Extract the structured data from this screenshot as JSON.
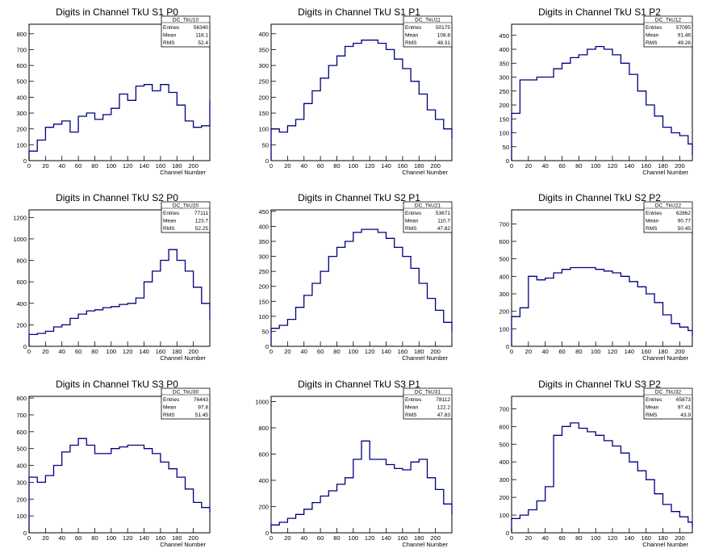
{
  "chart_data": [
    {
      "type": "histogram",
      "title": "Digits in Channel TkU S1 P0",
      "xlabel": "Channel Number",
      "stats": {
        "name": "DC_TkU10",
        "Entries": "56340",
        "Mean": "118.1",
        "RMS": "52.4"
      },
      "xlim": [
        0,
        220
      ],
      "ylim": [
        0,
        860
      ],
      "xticks": [
        0,
        20,
        40,
        60,
        80,
        100,
        120,
        140,
        160,
        180,
        200
      ],
      "yticks": [
        0,
        100,
        200,
        300,
        400,
        500,
        600,
        700,
        800
      ],
      "line_color": "#000080",
      "x_bins": [
        0,
        10,
        20,
        30,
        40,
        50,
        60,
        70,
        80,
        90,
        100,
        110,
        120,
        130,
        140,
        150,
        160,
        170,
        180,
        190,
        200,
        210,
        220
      ],
      "values": [
        60,
        130,
        210,
        230,
        250,
        180,
        280,
        300,
        260,
        290,
        330,
        420,
        380,
        470,
        480,
        440,
        480,
        430,
        350,
        250,
        210,
        220,
        380
      ]
    },
    {
      "type": "histogram",
      "title": "Digits in Channel TkU S1 P1",
      "xlabel": "Channel Number",
      "stats": {
        "name": "DC_TkU11",
        "Entries": "50175",
        "Mean": "108.8",
        "RMS": "48.31"
      },
      "xlim": [
        0,
        220
      ],
      "ylim": [
        0,
        430
      ],
      "xticks": [
        0,
        20,
        40,
        60,
        80,
        100,
        120,
        140,
        160,
        180,
        200
      ],
      "yticks": [
        0,
        50,
        100,
        150,
        200,
        250,
        300,
        350,
        400
      ],
      "line_color": "#000080",
      "x_bins": [
        0,
        10,
        20,
        30,
        40,
        50,
        60,
        70,
        80,
        90,
        100,
        110,
        120,
        130,
        140,
        150,
        160,
        170,
        180,
        190,
        200,
        210,
        220
      ],
      "values": [
        100,
        90,
        110,
        130,
        180,
        220,
        260,
        300,
        330,
        360,
        370,
        380,
        380,
        370,
        350,
        320,
        290,
        250,
        210,
        160,
        130,
        100,
        70
      ]
    },
    {
      "type": "histogram",
      "title": "Digits in Channel TkU S1 P2",
      "xlabel": "Channel Number",
      "stats": {
        "name": "DC_TkU12",
        "Entries": "57095",
        "Mean": "91.46",
        "RMS": "49.26"
      },
      "xlim": [
        0,
        215
      ],
      "ylim": [
        0,
        490
      ],
      "xticks": [
        0,
        20,
        40,
        60,
        80,
        100,
        120,
        140,
        160,
        180,
        200
      ],
      "yticks": [
        0,
        50,
        100,
        150,
        200,
        250,
        300,
        350,
        400,
        450
      ],
      "line_color": "#000080",
      "x_bins": [
        0,
        10,
        20,
        30,
        40,
        50,
        60,
        70,
        80,
        90,
        100,
        110,
        120,
        130,
        140,
        150,
        160,
        170,
        180,
        190,
        200,
        210,
        215
      ],
      "values": [
        170,
        290,
        290,
        300,
        300,
        330,
        350,
        370,
        380,
        400,
        410,
        400,
        380,
        350,
        310,
        250,
        200,
        160,
        120,
        100,
        90,
        60,
        20
      ]
    },
    {
      "type": "histogram",
      "title": "Digits in Channel TkU S2 P0",
      "xlabel": "Channel Number",
      "stats": {
        "name": "DC_TkU20",
        "Entries": "77111",
        "Mean": "123.7",
        "RMS": "52.25"
      },
      "xlim": [
        0,
        220
      ],
      "ylim": [
        0,
        1270
      ],
      "xticks": [
        0,
        20,
        40,
        60,
        80,
        100,
        120,
        140,
        160,
        180,
        200
      ],
      "yticks": [
        0,
        200,
        400,
        600,
        800,
        1000,
        1200
      ],
      "line_color": "#000080",
      "x_bins": [
        0,
        10,
        20,
        30,
        40,
        50,
        60,
        70,
        80,
        90,
        100,
        110,
        120,
        130,
        140,
        150,
        160,
        170,
        180,
        190,
        200,
        210,
        220
      ],
      "values": [
        110,
        120,
        140,
        180,
        200,
        260,
        300,
        330,
        340,
        360,
        370,
        390,
        400,
        450,
        600,
        700,
        800,
        900,
        800,
        700,
        550,
        400,
        250
      ]
    },
    {
      "type": "histogram",
      "title": "Digits in Channel TkU S2 P1",
      "xlabel": "Channel Number",
      "stats": {
        "name": "DC_TkU21",
        "Entries": "53671",
        "Mean": "110.7",
        "RMS": "47.82"
      },
      "xlim": [
        0,
        220
      ],
      "ylim": [
        0,
        455
      ],
      "xticks": [
        0,
        20,
        40,
        60,
        80,
        100,
        120,
        140,
        160,
        180,
        200
      ],
      "yticks": [
        0,
        50,
        100,
        150,
        200,
        250,
        300,
        350,
        400,
        450
      ],
      "line_color": "#000080",
      "x_bins": [
        0,
        10,
        20,
        30,
        40,
        50,
        60,
        70,
        80,
        90,
        100,
        110,
        120,
        130,
        140,
        150,
        160,
        170,
        180,
        190,
        200,
        210,
        220
      ],
      "values": [
        60,
        70,
        90,
        130,
        170,
        210,
        250,
        300,
        330,
        350,
        380,
        390,
        390,
        380,
        360,
        330,
        300,
        260,
        210,
        160,
        120,
        80,
        50
      ]
    },
    {
      "type": "histogram",
      "title": "Digits in Channel TkU S2 P2",
      "xlabel": "Channel Number",
      "stats": {
        "name": "DC_TkU22",
        "Entries": "62862",
        "Mean": "90.77",
        "RMS": "50.45"
      },
      "xlim": [
        0,
        215
      ],
      "ylim": [
        0,
        780
      ],
      "xticks": [
        0,
        20,
        40,
        60,
        80,
        100,
        120,
        140,
        160,
        180,
        200
      ],
      "yticks": [
        0,
        100,
        200,
        300,
        400,
        500,
        600,
        700
      ],
      "line_color": "#000080",
      "x_bins": [
        0,
        10,
        20,
        30,
        40,
        50,
        60,
        70,
        80,
        90,
        100,
        110,
        120,
        130,
        140,
        150,
        160,
        170,
        180,
        190,
        200,
        210,
        215
      ],
      "values": [
        170,
        220,
        400,
        380,
        390,
        420,
        440,
        450,
        450,
        450,
        440,
        430,
        420,
        400,
        370,
        340,
        300,
        250,
        180,
        130,
        110,
        90,
        60
      ]
    },
    {
      "type": "histogram",
      "title": "Digits in Channel TkU S3 P0",
      "xlabel": "Channel Number",
      "stats": {
        "name": "DC_TkU30",
        "Entries": "76443",
        "Mean": "97.8",
        "RMS": "51.45"
      },
      "xlim": [
        0,
        220
      ],
      "ylim": [
        0,
        810
      ],
      "xticks": [
        0,
        20,
        40,
        60,
        80,
        100,
        120,
        140,
        160,
        180,
        200
      ],
      "yticks": [
        0,
        100,
        200,
        300,
        400,
        500,
        600,
        700,
        800
      ],
      "line_color": "#000080",
      "x_bins": [
        0,
        10,
        20,
        30,
        40,
        50,
        60,
        70,
        80,
        90,
        100,
        110,
        120,
        130,
        140,
        150,
        160,
        170,
        180,
        190,
        200,
        210,
        220
      ],
      "values": [
        330,
        300,
        340,
        400,
        480,
        520,
        560,
        520,
        470,
        470,
        500,
        510,
        520,
        520,
        500,
        470,
        420,
        380,
        330,
        260,
        180,
        150,
        120
      ]
    },
    {
      "type": "histogram",
      "title": "Digits in Channel TkU S3 P1",
      "xlabel": "Channel Number",
      "stats": {
        "name": "DC_TkU31",
        "Entries": "78112",
        "Mean": "122.2",
        "RMS": "47.83"
      },
      "xlim": [
        0,
        220
      ],
      "ylim": [
        0,
        1040
      ],
      "xticks": [
        0,
        20,
        40,
        60,
        80,
        100,
        120,
        140,
        160,
        180,
        200
      ],
      "yticks": [
        0,
        200,
        400,
        600,
        800,
        1000
      ],
      "line_color": "#000080",
      "x_bins": [
        0,
        10,
        20,
        30,
        40,
        50,
        60,
        70,
        80,
        90,
        100,
        110,
        120,
        130,
        140,
        150,
        160,
        170,
        180,
        190,
        200,
        210,
        220
      ],
      "values": [
        60,
        80,
        110,
        140,
        180,
        230,
        280,
        320,
        370,
        420,
        560,
        700,
        560,
        560,
        520,
        490,
        480,
        540,
        560,
        420,
        330,
        220,
        140
      ]
    },
    {
      "type": "histogram",
      "title": "Digits in Channel TkU S3 P2",
      "xlabel": "Channel Number",
      "stats": {
        "name": "DC_TkU32",
        "Entries": "65873",
        "Mean": "97.41",
        "RMS": "43.9"
      },
      "xlim": [
        0,
        215
      ],
      "ylim": [
        0,
        770
      ],
      "xticks": [
        0,
        20,
        40,
        60,
        80,
        100,
        120,
        140,
        160,
        180,
        200
      ],
      "yticks": [
        0,
        100,
        200,
        300,
        400,
        500,
        600,
        700
      ],
      "line_color": "#000080",
      "x_bins": [
        0,
        10,
        20,
        30,
        40,
        50,
        60,
        70,
        80,
        90,
        100,
        110,
        120,
        130,
        140,
        150,
        160,
        170,
        180,
        190,
        200,
        210,
        215
      ],
      "values": [
        80,
        100,
        130,
        180,
        260,
        550,
        600,
        620,
        590,
        570,
        550,
        520,
        490,
        450,
        400,
        350,
        300,
        220,
        160,
        120,
        90,
        60,
        30
      ]
    }
  ]
}
